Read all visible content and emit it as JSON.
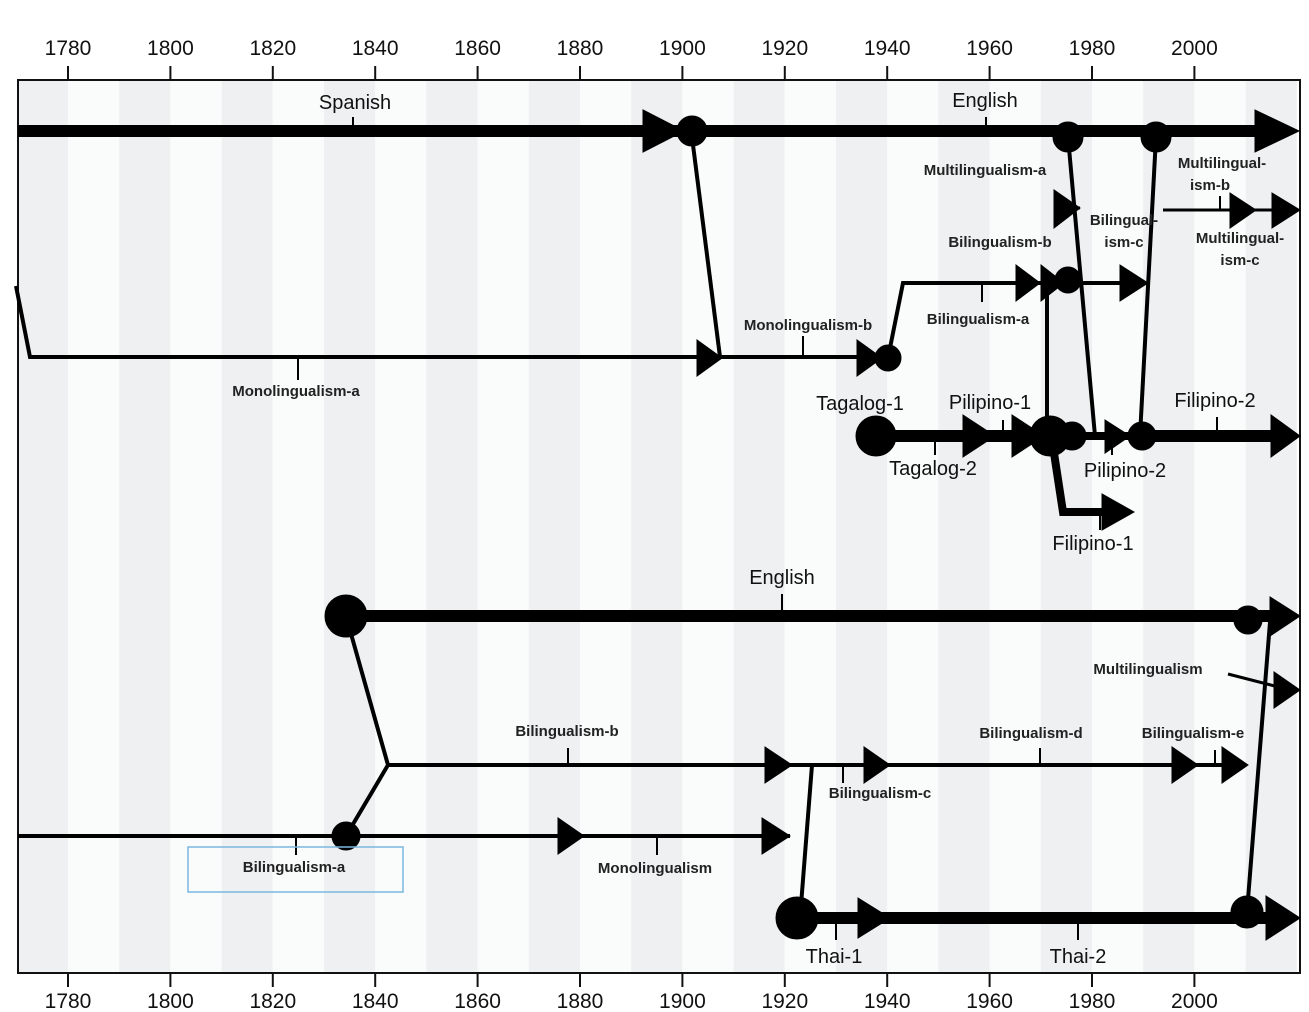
{
  "axis": {
    "years": [
      "1780",
      "1800",
      "1820",
      "1840",
      "1860",
      "1880",
      "1900",
      "1920",
      "1940",
      "1960",
      "1980",
      "2000"
    ]
  },
  "labels": {
    "spanish": "Spanish",
    "english_top": "English",
    "multilingualism_a": "Multilingualism-a",
    "multilingualism_b_1": "Multilingual-",
    "multilingualism_b_2": "ism-b",
    "multilingualism_c_1": "Multilingual-",
    "multilingualism_c_2": "ism-c",
    "bilingualism_b_top": "Bilingualism-b",
    "bilingualism_c_top_1": "Bilingual-",
    "bilingualism_c_top_2": "ism-c",
    "bilingualism_a_top": "Bilingualism-a",
    "monolingualism_b": "Monolingualism-b",
    "monolingualism_a": "Monolingualism-a",
    "tagalog_1": "Tagalog-1",
    "tagalog_2": "Tagalog-2",
    "pilipino_1": "Pilipino-1",
    "pilipino_2": "Pilipino-2",
    "filipino_2": "Filipino-2",
    "filipino_1": "Filipino-1",
    "english_bottom": "English",
    "multilingualism": "Multilingualism",
    "bilingualism_b_bottom": "Bilingualism-b",
    "bilingualism_d": "Bilingualism-d",
    "bilingualism_e": "Bilingualism-e",
    "bilingualism_c_bottom": "Bilingualism-c",
    "bilingualism_a_bottom": "Bilingualism-a",
    "monolingualism": "Monolingualism",
    "thai_1": "Thai-1",
    "thai_2": "Thai-2"
  }
}
